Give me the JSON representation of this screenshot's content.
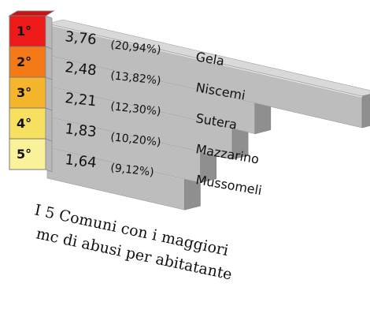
{
  "colors": {
    "bar_top": "#d9d9d9",
    "bar_front": "#bdbdbd",
    "bar_side": "#8f8f8f",
    "rank_palette": [
      "#ee1a1a",
      "#f47a18",
      "#f5b52c",
      "#f7df5f",
      "#faf29a"
    ]
  },
  "caption": {
    "line1": "I 5 Comuni con i maggiori",
    "line2": "mc di abusi per abitatante"
  },
  "chart_data": {
    "type": "bar",
    "title": "",
    "orientation": "horizontal-3d",
    "categories": [
      "Gela",
      "Niscemi",
      "Sutera",
      "Mazzarino",
      "Mussomeli"
    ],
    "ranks": [
      "1°",
      "2°",
      "3°",
      "4°",
      "5°"
    ],
    "values": [
      3.76,
      2.48,
      2.21,
      1.83,
      1.64
    ],
    "value_labels": [
      "3,76",
      "2,48",
      "2,21",
      "1,83",
      "1,64"
    ],
    "percentages": [
      20.94,
      13.82,
      12.3,
      10.2,
      9.12
    ],
    "percentage_labels": [
      "(20,94%)",
      "(13,82%)",
      "(12,30%)",
      "(10,20%)",
      "(9,12%)"
    ],
    "grid": false,
    "legend": "none"
  }
}
